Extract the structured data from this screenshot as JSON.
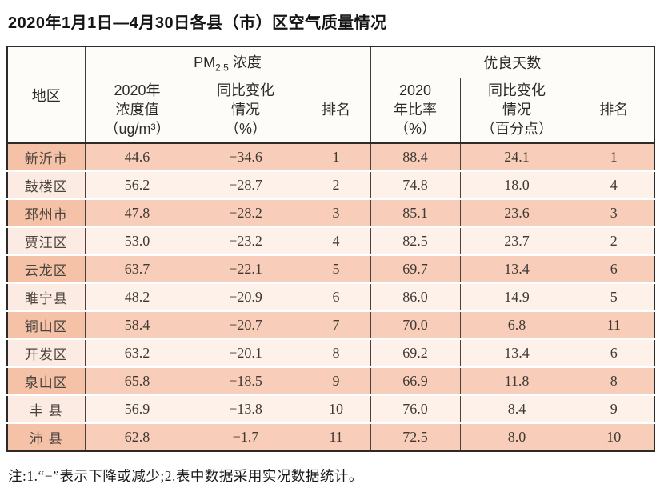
{
  "title": "2020年1月1日—4月30日各县（市）区空气质量情况",
  "table": {
    "header": {
      "region": "地区",
      "pm25_group": {
        "prefix": "PM",
        "sub": "2.5",
        "suffix": " 浓度"
      },
      "good_days_group": "优良天数",
      "sub": [
        "2020年\n浓度值\n（ug/m³）",
        "同比变化\n情况\n（%）",
        "排名",
        "2020\n年比率\n（%）",
        "同比变化\n情况\n（百分点）",
        "排名"
      ]
    },
    "rows": [
      [
        "新沂市",
        "44.6",
        "−34.6",
        "1",
        "88.4",
        "24.1",
        "1"
      ],
      [
        "鼓楼区",
        "56.2",
        "−28.7",
        "2",
        "74.8",
        "18.0",
        "4"
      ],
      [
        "邳州市",
        "47.8",
        "−28.2",
        "3",
        "85.1",
        "23.6",
        "3"
      ],
      [
        "贾汪区",
        "53.0",
        "−23.2",
        "4",
        "82.5",
        "23.7",
        "2"
      ],
      [
        "云龙区",
        "63.7",
        "−22.1",
        "5",
        "69.7",
        "13.4",
        "6"
      ],
      [
        "睢宁县",
        "48.2",
        "−20.9",
        "6",
        "86.0",
        "14.9",
        "5"
      ],
      [
        "铜山区",
        "58.4",
        "−20.7",
        "7",
        "70.0",
        "6.8",
        "11"
      ],
      [
        "开发区",
        "63.2",
        "−20.1",
        "8",
        "69.2",
        "13.4",
        "6"
      ],
      [
        "泉山区",
        "65.8",
        "−18.5",
        "9",
        "66.9",
        "11.8",
        "8"
      ],
      [
        "丰 县",
        "56.9",
        "−13.8",
        "10",
        "76.0",
        "8.4",
        "9"
      ],
      [
        "沛 县",
        "62.8",
        "−1.7",
        "11",
        "72.5",
        "8.0",
        "10"
      ]
    ]
  },
  "footnote": "注:1.“−”表示下降或减少;2.表中数据采用实况数据统计。",
  "colors": {
    "row_odd": "#f8cdb9",
    "row_odd_region": "#f5c2a8",
    "row_even": "#fdf1ea",
    "row_even_region": "#fcebe2",
    "header_bg": "#fefcf8",
    "border_outer": "#2e2a26",
    "border_inner": "#4a423a"
  }
}
